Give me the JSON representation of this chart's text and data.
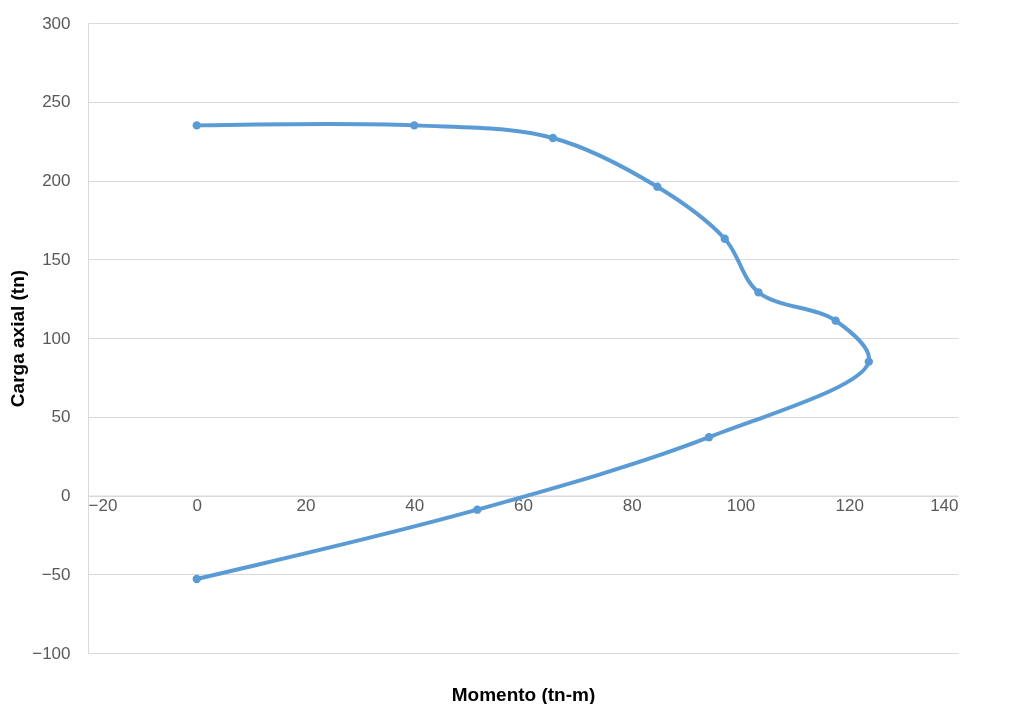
{
  "chart_data": {
    "type": "line",
    "xlabel": "Momento (tn-m)",
    "ylabel": "Carga axial (tn)",
    "x": [
      0,
      40,
      65.5,
      84.7,
      97.1,
      103.3,
      117.5,
      123.6,
      94.2,
      51.6,
      0
    ],
    "series": [
      {
        "color": "#5b9bd5",
        "values": [
          235,
          235,
          227,
          196,
          163,
          129,
          111,
          85,
          37,
          -9,
          -53
        ]
      }
    ],
    "xlim": [
      -20,
      140
    ],
    "xticks": [
      -20,
      0,
      20,
      40,
      60,
      80,
      100,
      120,
      140
    ],
    "ylim": [
      -100,
      300
    ],
    "yticks": [
      -100,
      -50,
      0,
      50,
      100,
      150,
      200,
      250,
      300
    ],
    "grid": "y",
    "marker": "circle",
    "line_style": "solid"
  }
}
